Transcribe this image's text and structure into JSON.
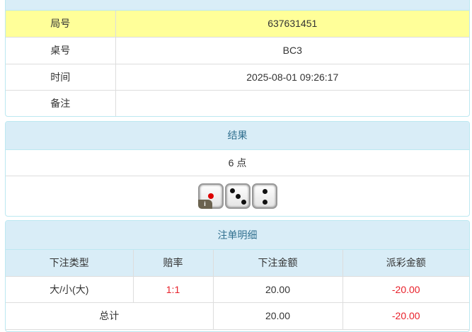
{
  "info": {
    "rows": [
      {
        "label": "局号",
        "value": "637631451"
      },
      {
        "label": "桌号",
        "value": "BC3"
      },
      {
        "label": "时间",
        "value": "2025-08-01 09:26:17"
      },
      {
        "label": "备注",
        "value": ""
      }
    ]
  },
  "result": {
    "title": "结果",
    "points": "6 点",
    "dice": [
      1,
      3,
      2
    ],
    "info_badge": "i"
  },
  "bets": {
    "title": "注单明细",
    "columns": [
      "下注类型",
      "赔率",
      "下注金额",
      "派彩金额"
    ],
    "rows": [
      {
        "type": "大/小(大)",
        "odds": "1:1",
        "amount": "20.00",
        "payout": "-20.00"
      }
    ],
    "total": {
      "label": "总计",
      "amount": "20.00",
      "payout": "-20.00"
    }
  },
  "colors": {
    "header_bg": "#d9edf7",
    "highlight_row": "#ffff99",
    "negative": "#e8202a"
  }
}
